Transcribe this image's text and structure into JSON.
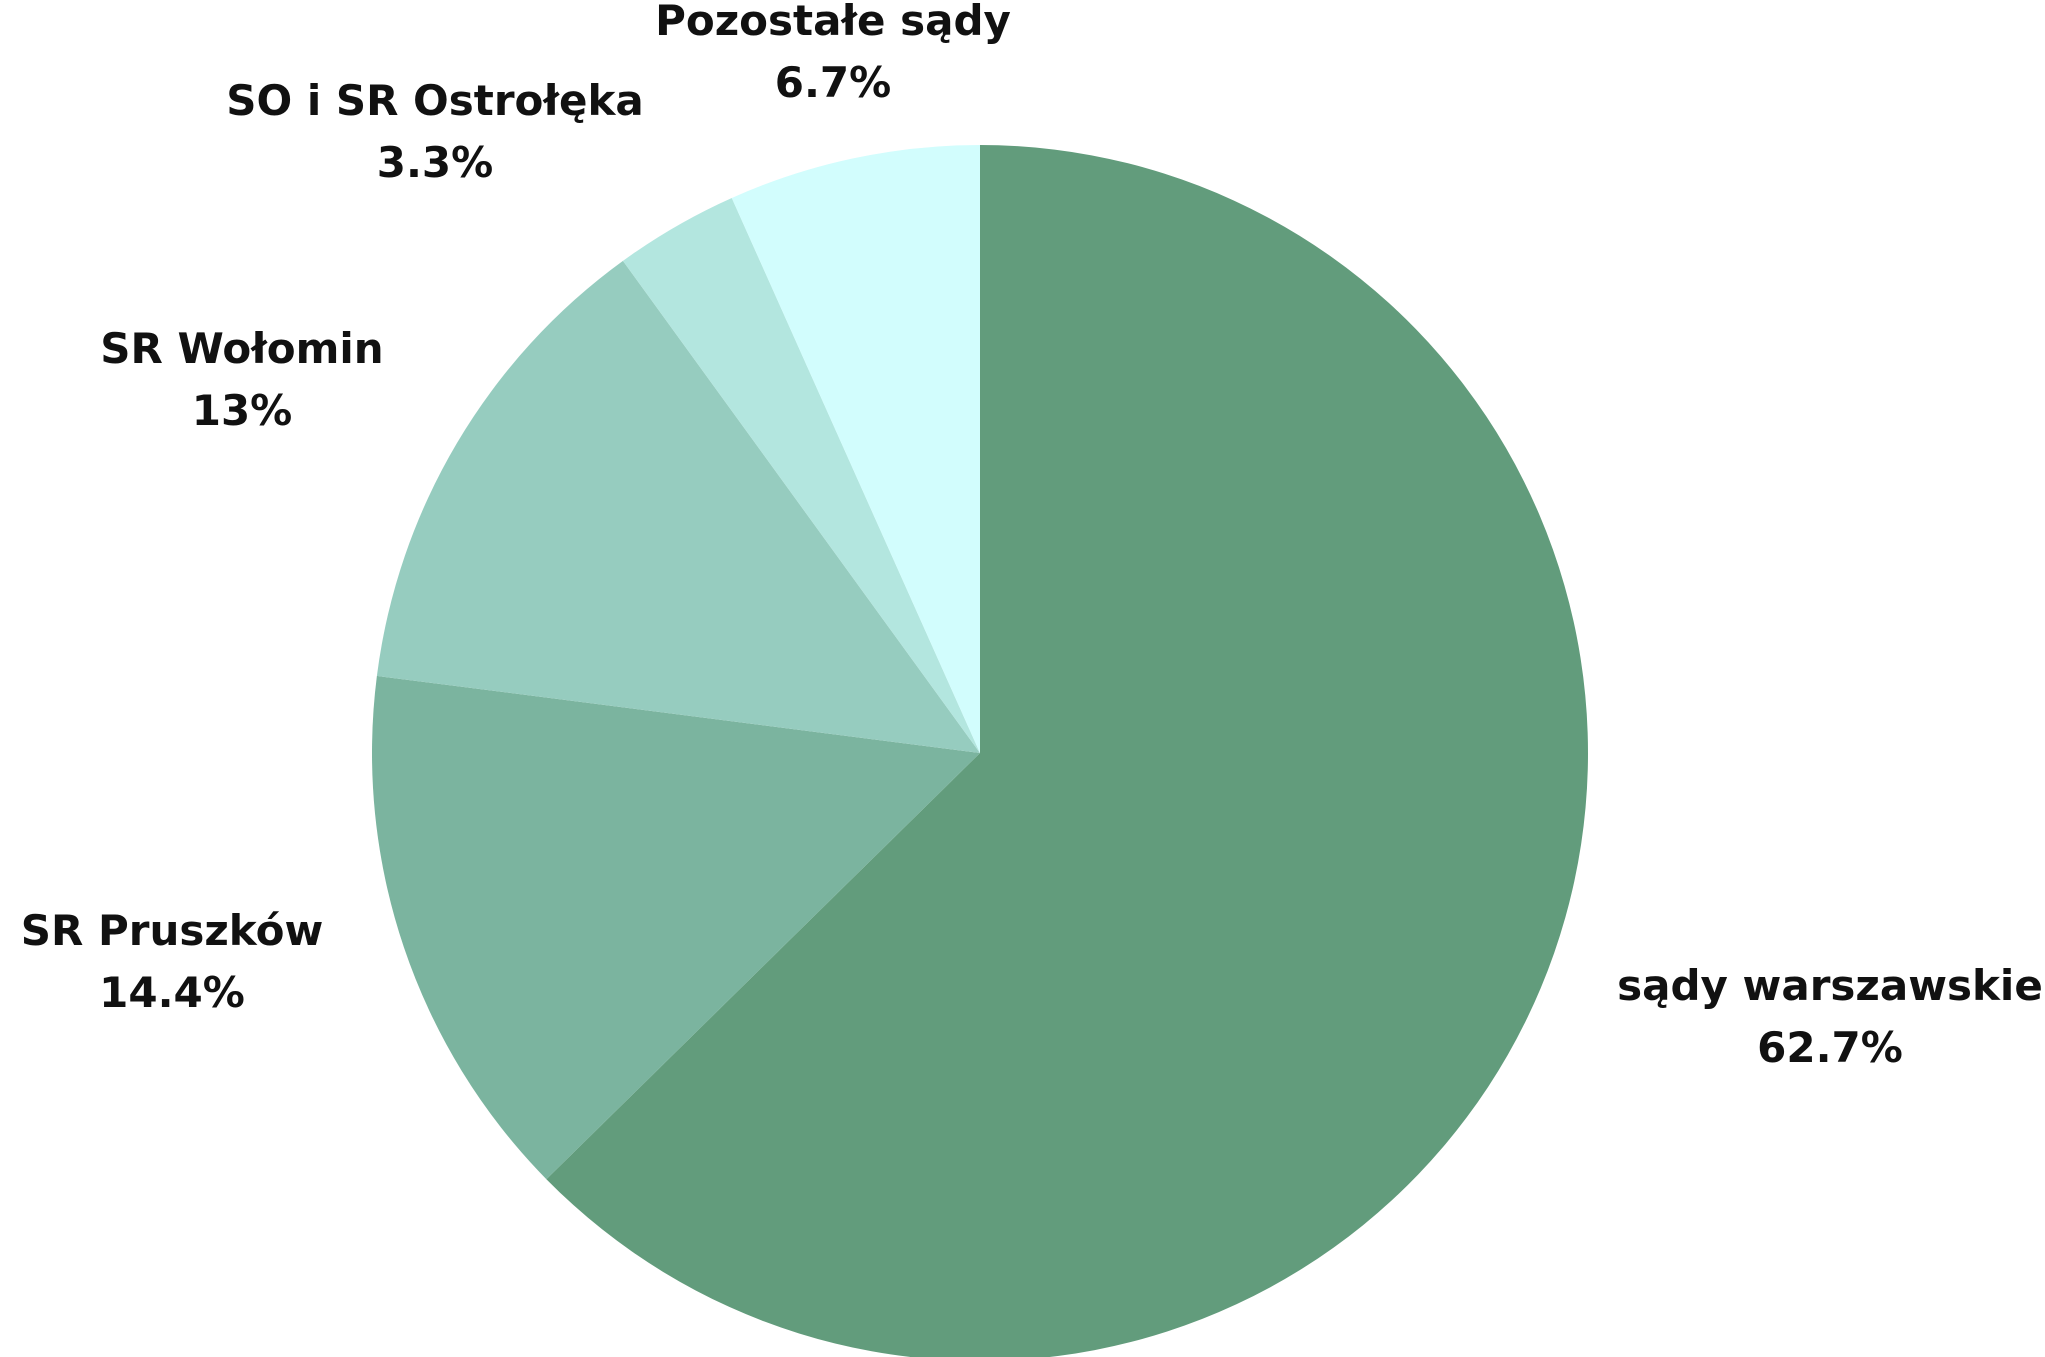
{
  "chart_data": {
    "type": "pie",
    "title": "",
    "slices": [
      {
        "name": "sądy warszawskie",
        "label": "62.7%",
        "value": 62.7,
        "color": "#629c7c"
      },
      {
        "name": "SR Pruszków",
        "label": "14.4%",
        "value": 14.4,
        "color": "#7bb49f"
      },
      {
        "name": "SR Wołomin",
        "label": "13%",
        "value": 13.0,
        "color": "#96ccbf"
      },
      {
        "name": "SO i SR Ostrołęka",
        "label": "3.3%",
        "value": 3.3,
        "color": "#b3e6df"
      },
      {
        "name": "Pozostałe sądy",
        "label": "6.7%",
        "value": 6.7,
        "color": "#d2fdfd"
      }
    ],
    "start_direction": "top",
    "direction": "clockwise",
    "legend": "none",
    "labels": "outside"
  }
}
